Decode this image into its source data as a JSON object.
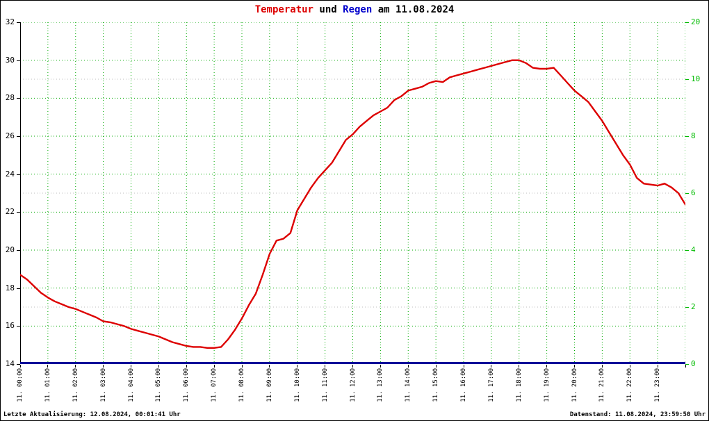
{
  "title": {
    "temperatur": "Temperatur",
    "und": " und ",
    "regen": "Regen",
    "date_suffix": " am 11.08.2024"
  },
  "footer": {
    "last_update": "Letzte Aktualisierung: 12.08.2024, 00:01:41 Uhr",
    "data_state": "Datenstand: 11.08.2024, 23:59:50 Uhr"
  },
  "colors": {
    "title_temperatur": "#dd0000",
    "title_regen": "#0000cc",
    "temperature_line": "#dd0000",
    "rain_line": "#000099",
    "grid_green": "#00aa00",
    "grid_gray": "#bcbcbc",
    "right_axis_text": "#00bb00",
    "axis_text": "#000000"
  },
  "chart_data": {
    "type": "line",
    "title": "Temperatur und Regen am 11.08.2024",
    "left_axis": {
      "min": 14,
      "max": 32,
      "ticks": [
        32,
        30,
        28,
        26,
        24,
        22,
        20,
        18,
        16,
        14
      ]
    },
    "right_axis": {
      "ticks_top_to_bottom": [
        "20",
        "10",
        "8",
        "6",
        "4",
        "2",
        "0"
      ]
    },
    "x_ticks": [
      "11. 00:00",
      "11. 01:00",
      "11. 02:00",
      "11. 03:00",
      "11. 04:00",
      "11. 05:00",
      "11. 06:00",
      "11. 07:00",
      "11. 08:00",
      "11. 09:00",
      "11. 10:00",
      "11. 11:00",
      "11. 12:00",
      "11. 13:00",
      "11. 14:00",
      "11. 15:00",
      "11. 16:00",
      "11. 17:00",
      "11. 18:00",
      "11. 19:00",
      "11. 20:00",
      "11. 21:00",
      "11. 22:00",
      "11. 23:00"
    ],
    "series": [
      {
        "name": "Temperatur",
        "color": "#dd0000",
        "start_hour": 0,
        "interval_hours": 0.25,
        "values": [
          18.7,
          18.45,
          18.1,
          17.75,
          17.5,
          17.3,
          17.15,
          17.0,
          16.9,
          16.75,
          16.6,
          16.45,
          16.25,
          16.2,
          16.1,
          16.0,
          15.85,
          15.75,
          15.65,
          15.55,
          15.45,
          15.3,
          15.15,
          15.05,
          14.95,
          14.9,
          14.9,
          14.85,
          14.85,
          14.9,
          15.3,
          15.8,
          16.4,
          17.1,
          17.7,
          18.7,
          19.8,
          20.5,
          20.6,
          20.9,
          22.1,
          22.7,
          23.3,
          23.8,
          24.2,
          24.6,
          25.2,
          25.8,
          26.1,
          26.5,
          26.8,
          27.1,
          27.3,
          27.5,
          27.9,
          28.1,
          28.4,
          28.5,
          28.6,
          28.8,
          28.9,
          28.85,
          29.1,
          29.2,
          29.3,
          29.4,
          29.5,
          29.6,
          29.7,
          29.8,
          29.9,
          30.0,
          30.0,
          29.85,
          29.6,
          29.55,
          29.55,
          29.6,
          29.2,
          28.8,
          28.4,
          28.1,
          27.8,
          27.3,
          26.8,
          26.2,
          25.6,
          25.0,
          24.5,
          23.8,
          23.5,
          23.45,
          23.4,
          23.5,
          23.3,
          23.0,
          22.4
        ]
      },
      {
        "name": "Regen",
        "color": "#000099",
        "constant_value": 0
      }
    ]
  }
}
